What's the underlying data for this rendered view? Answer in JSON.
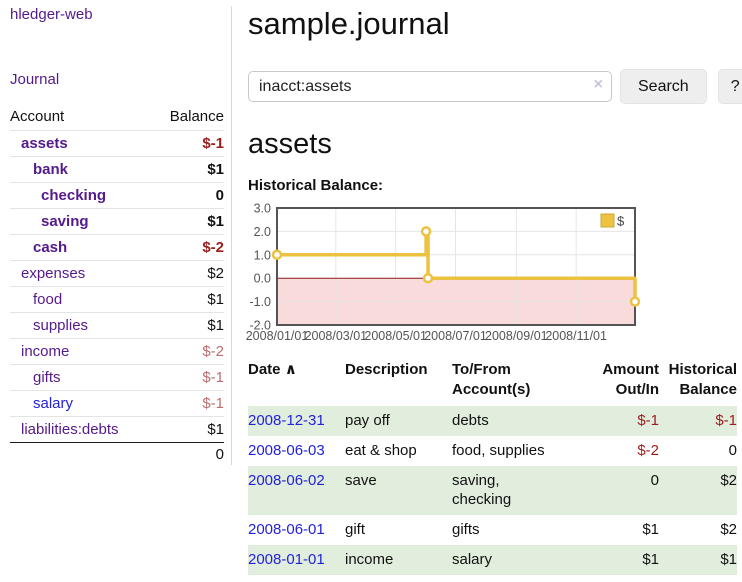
{
  "sidebar": {
    "app_title": "hledger-web",
    "journal_link": "Journal",
    "accounts": {
      "header_account": "Account",
      "header_balance": "Balance",
      "rows": [
        {
          "name": "assets",
          "balance": "$-1"
        },
        {
          "name": "bank",
          "balance": "$1"
        },
        {
          "name": "checking",
          "balance": "0"
        },
        {
          "name": "saving",
          "balance": "$1"
        },
        {
          "name": "cash",
          "balance": "$-2"
        },
        {
          "name": "expenses",
          "balance": "$2"
        },
        {
          "name": "food",
          "balance": "$1"
        },
        {
          "name": "supplies",
          "balance": "$1"
        },
        {
          "name": "income",
          "balance": "$-2"
        },
        {
          "name": "gifts",
          "balance": "$-1"
        },
        {
          "name": "salary",
          "balance": "$-1"
        },
        {
          "name": "liabilities:debts",
          "balance": "$1"
        }
      ],
      "total": "0"
    }
  },
  "main": {
    "title": "sample.journal",
    "search": {
      "value": "inacct:assets",
      "clear_icon": "×",
      "search_button": "Search",
      "help_button": "?"
    },
    "account_heading": "assets",
    "chart_title": "Historical Balance:"
  },
  "chart_data": {
    "type": "line",
    "step": true,
    "title": "Historical Balance:",
    "series": [
      {
        "name": "$",
        "color": "#edc240",
        "points": [
          [
            "2008-01-01",
            1
          ],
          [
            "2008-06-01",
            2
          ],
          [
            "2008-06-03",
            0
          ],
          [
            "2008-12-31",
            -1
          ]
        ]
      }
    ],
    "ylim": [
      -2,
      3
    ],
    "yticks": [
      3,
      2,
      1,
      0,
      -1,
      -2
    ],
    "xticks": [
      "2008/01/01",
      "2008/03/01",
      "2008/05/01",
      "2008/07/01",
      "2008/09/01",
      "2008/11/01"
    ],
    "xrange": [
      "2008-01-01",
      "2008-12-31"
    ],
    "legend": {
      "label": "$",
      "position": "top-right"
    },
    "grid": true,
    "grid_color": "#e4e4e4",
    "border_color": "#545454",
    "zero_line_color": "#8b1a1a",
    "negative_region_fill": "#f9dbdb",
    "marker_fill": "#ffffff",
    "xlabel": "",
    "ylabel": ""
  },
  "register": {
    "headers": {
      "date": "Date",
      "sort_icon": "∧",
      "description": "Description",
      "account": "To/From Account(s)",
      "amount": "Amount Out/In",
      "balance": "Historical Balance"
    },
    "rows": [
      {
        "date": "2008-12-31",
        "description": "pay off",
        "accounts": "debts",
        "amount": "$-1",
        "balance": "$-1"
      },
      {
        "date": "2008-06-03",
        "description": "eat & shop",
        "accounts": "food, supplies",
        "amount": "$-2",
        "balance": "0"
      },
      {
        "date": "2008-06-02",
        "description": "save",
        "accounts": "saving,\nchecking",
        "amount": "0",
        "balance": "$2"
      },
      {
        "date": "2008-06-01",
        "description": "gift",
        "accounts": "gifts",
        "amount": "$1",
        "balance": "$2"
      },
      {
        "date": "2008-01-01",
        "description": "income",
        "accounts": "salary",
        "amount": "$1",
        "balance": "$1"
      }
    ]
  }
}
